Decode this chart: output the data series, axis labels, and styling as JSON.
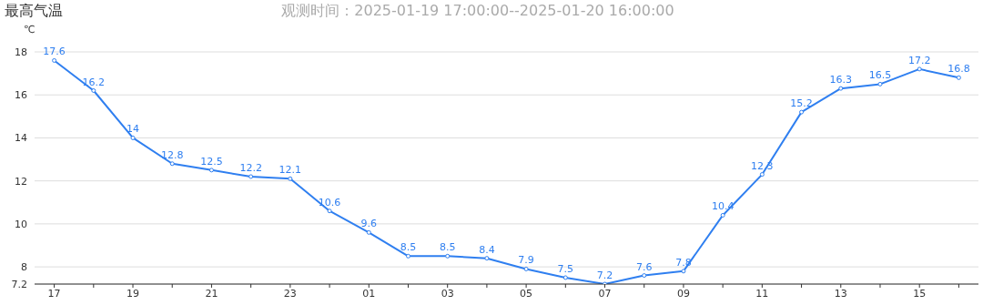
{
  "chart_data": {
    "type": "line",
    "title": "最高气温",
    "subtitle": "观测时间：2025-01-19 17:00:00--2025-01-20 16:00:00",
    "ylabel": "℃",
    "categories": [
      "17",
      null,
      "19",
      null,
      "21",
      null,
      "23",
      null,
      "01",
      null,
      "03",
      null,
      "05",
      null,
      "07",
      null,
      "09",
      null,
      "11",
      null,
      "13",
      null,
      "15",
      null
    ],
    "series": [
      {
        "color": "#2f7ff0",
        "values": [
          17.6,
          16.2,
          14,
          12.8,
          12.5,
          12.2,
          12.1,
          10.6,
          9.6,
          8.5,
          8.5,
          8.4,
          7.9,
          7.5,
          7.2,
          7.6,
          7.8,
          10.4,
          12.3,
          15.2,
          16.3,
          16.5,
          17.2,
          16.8
        ]
      }
    ],
    "ylim": [
      7.2,
      18
    ],
    "yticks": [
      7.2,
      8,
      10,
      12,
      14,
      16,
      18
    ],
    "grid": "y",
    "data_labels": true,
    "marker": "circle",
    "line_style": "solid",
    "legend": false
  }
}
